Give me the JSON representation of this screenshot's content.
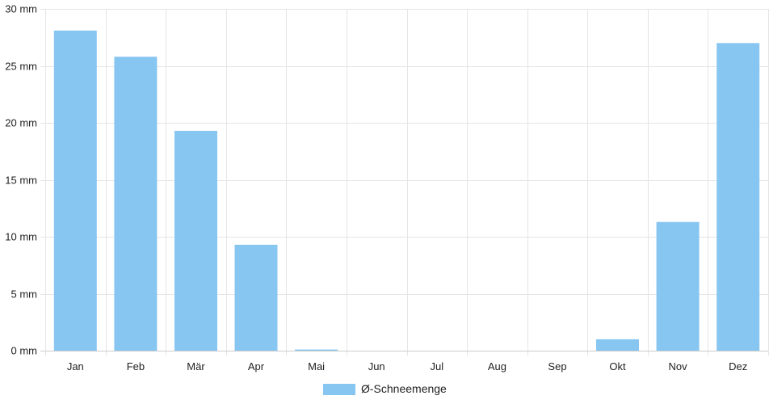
{
  "chart_data": {
    "type": "bar",
    "categories": [
      "Jan",
      "Feb",
      "Mär",
      "Apr",
      "Mai",
      "Jun",
      "Jul",
      "Aug",
      "Sep",
      "Okt",
      "Nov",
      "Dez"
    ],
    "series": [
      {
        "name": "Ø-Schneemenge",
        "values": [
          28.1,
          25.8,
          19.3,
          9.3,
          0.1,
          0,
          0,
          0,
          0,
          1.0,
          11.3,
          27.0
        ]
      }
    ],
    "y_unit": "mm",
    "ylim": [
      0,
      30
    ],
    "y_ticks": [
      0,
      5,
      10,
      15,
      20,
      25,
      30
    ],
    "y_tick_labels": [
      "0 mm",
      "5 mm",
      "10 mm",
      "15 mm",
      "20 mm",
      "25 mm",
      "30 mm"
    ],
    "grid": true,
    "legend_position": "bottom-center",
    "colors": {
      "bar": "#88c6f2",
      "grid": "#e5e5e5",
      "axis": "#cccccc"
    }
  }
}
